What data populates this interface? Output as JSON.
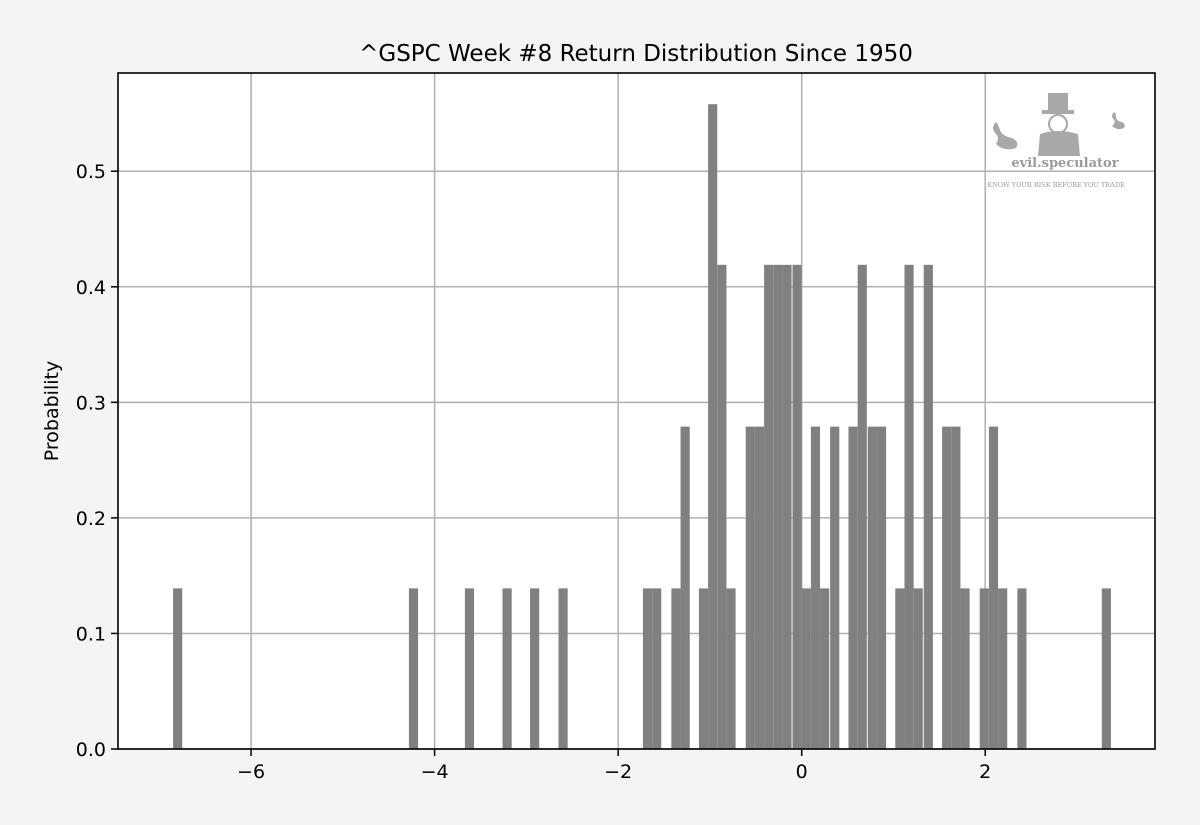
{
  "chart_data": {
    "type": "bar",
    "title": "^GSPC Week #8 Return Distribution Since 1950",
    "xlabel": "",
    "ylabel": "Probability",
    "xlim": [
      -7.45,
      3.85
    ],
    "ylim": [
      0.0,
      0.585
    ],
    "grid": true,
    "bar_color": "#808080",
    "grid_color": "#b0b0b0",
    "bin_width": 0.1,
    "x_ticks": [
      -6,
      -4,
      -2,
      0,
      2
    ],
    "x_tick_labels": [
      "−6",
      "−4",
      "−2",
      "0",
      "2"
    ],
    "y_ticks": [
      0.0,
      0.1,
      0.2,
      0.3,
      0.4,
      0.5
    ],
    "y_tick_labels": [
      "0.0",
      "0.1",
      "0.2",
      "0.3",
      "0.4",
      "0.5"
    ],
    "bins": [
      {
        "x": -6.8,
        "y": 0.139
      },
      {
        "x": -4.23,
        "y": 0.139
      },
      {
        "x": -3.62,
        "y": 0.139
      },
      {
        "x": -3.21,
        "y": 0.139
      },
      {
        "x": -2.91,
        "y": 0.139
      },
      {
        "x": -2.6,
        "y": 0.139
      },
      {
        "x": -1.68,
        "y": 0.139
      },
      {
        "x": -1.58,
        "y": 0.139
      },
      {
        "x": -1.37,
        "y": 0.139
      },
      {
        "x": -1.27,
        "y": 0.279
      },
      {
        "x": -1.07,
        "y": 0.139
      },
      {
        "x": -0.97,
        "y": 0.558
      },
      {
        "x": -0.87,
        "y": 0.419
      },
      {
        "x": -0.77,
        "y": 0.139
      },
      {
        "x": -0.56,
        "y": 0.279
      },
      {
        "x": -0.46,
        "y": 0.279
      },
      {
        "x": -0.36,
        "y": 0.419
      },
      {
        "x": -0.26,
        "y": 0.419
      },
      {
        "x": -0.16,
        "y": 0.419
      },
      {
        "x": -0.05,
        "y": 0.419
      },
      {
        "x": 0.05,
        "y": 0.139
      },
      {
        "x": 0.15,
        "y": 0.279
      },
      {
        "x": 0.25,
        "y": 0.139
      },
      {
        "x": 0.36,
        "y": 0.279
      },
      {
        "x": 0.56,
        "y": 0.279
      },
      {
        "x": 0.66,
        "y": 0.419
      },
      {
        "x": 0.77,
        "y": 0.279
      },
      {
        "x": 0.87,
        "y": 0.279
      },
      {
        "x": 1.07,
        "y": 0.139
      },
      {
        "x": 1.17,
        "y": 0.419
      },
      {
        "x": 1.27,
        "y": 0.139
      },
      {
        "x": 1.38,
        "y": 0.419
      },
      {
        "x": 1.58,
        "y": 0.279
      },
      {
        "x": 1.68,
        "y": 0.279
      },
      {
        "x": 1.78,
        "y": 0.139
      },
      {
        "x": 1.99,
        "y": 0.139
      },
      {
        "x": 2.09,
        "y": 0.279
      },
      {
        "x": 2.19,
        "y": 0.139
      },
      {
        "x": 2.4,
        "y": 0.139
      },
      {
        "x": 3.32,
        "y": 0.139
      }
    ]
  },
  "watermark": {
    "brand": "evil.speculator",
    "tagline": "KNOW YOUR RISK BEFORE YOU TRADE",
    "color": "#9a9a9a"
  }
}
